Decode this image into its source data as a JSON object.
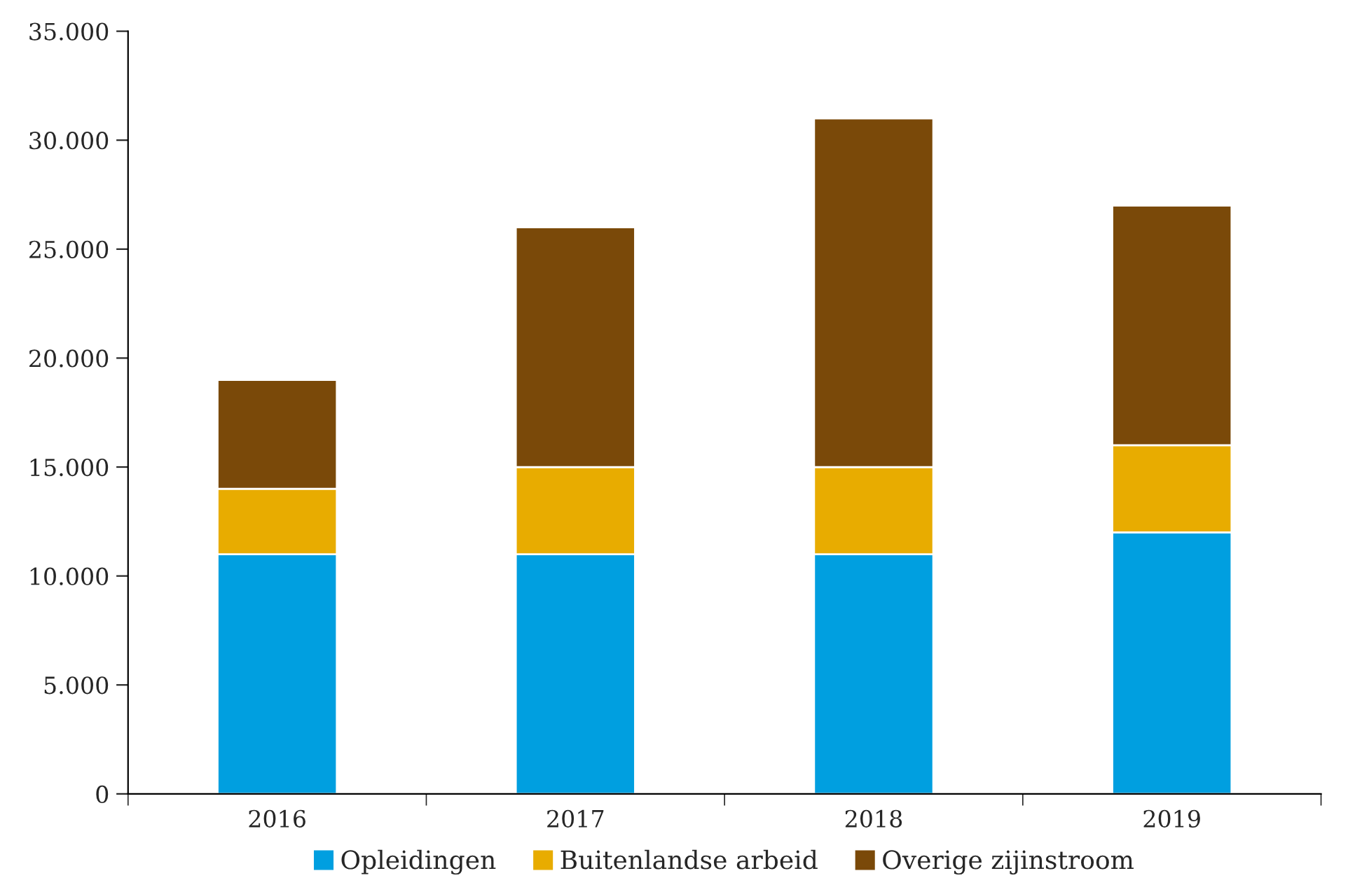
{
  "chart_data": {
    "type": "bar",
    "stacked": true,
    "categories": [
      "2016",
      "2017",
      "2018",
      "2019"
    ],
    "series": [
      {
        "name": "Opleidingen",
        "color": "#009fe0",
        "values": [
          11000,
          11000,
          11000,
          12000
        ]
      },
      {
        "name": "Buitenlandse arbeid",
        "color": "#e8ac00",
        "values": [
          3000,
          4000,
          4000,
          4000
        ]
      },
      {
        "name": "Overige zijinstroom",
        "color": "#7a4909",
        "values": [
          5000,
          11000,
          16000,
          11000
        ]
      }
    ],
    "ylim": [
      0,
      35000
    ],
    "yticks": [
      {
        "value": 0,
        "label": "0"
      },
      {
        "value": 5000,
        "label": "5.000"
      },
      {
        "value": 10000,
        "label": "10.000"
      },
      {
        "value": 15000,
        "label": "15.000"
      },
      {
        "value": 20000,
        "label": "20.000"
      },
      {
        "value": 25000,
        "label": "25.000"
      },
      {
        "value": 30000,
        "label": "30.000"
      },
      {
        "value": 35000,
        "label": "35.000"
      }
    ],
    "grid": false,
    "legend": "bottom"
  }
}
